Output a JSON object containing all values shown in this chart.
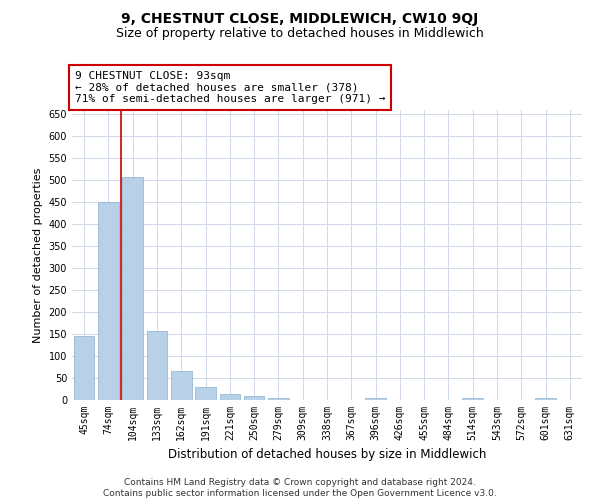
{
  "title": "9, CHESTNUT CLOSE, MIDDLEWICH, CW10 9QJ",
  "subtitle": "Size of property relative to detached houses in Middlewich",
  "xlabel": "Distribution of detached houses by size in Middlewich",
  "ylabel": "Number of detached properties",
  "categories": [
    "45sqm",
    "74sqm",
    "104sqm",
    "133sqm",
    "162sqm",
    "191sqm",
    "221sqm",
    "250sqm",
    "279sqm",
    "309sqm",
    "338sqm",
    "367sqm",
    "396sqm",
    "426sqm",
    "455sqm",
    "484sqm",
    "514sqm",
    "543sqm",
    "572sqm",
    "601sqm",
    "631sqm"
  ],
  "values": [
    145,
    450,
    507,
    158,
    65,
    30,
    13,
    8,
    5,
    0,
    0,
    0,
    5,
    0,
    0,
    0,
    5,
    0,
    0,
    5,
    0
  ],
  "bar_color": "#b8d0e8",
  "bar_edge_color": "#8ab0d0",
  "grid_color": "#d0d8e8",
  "background_color": "#ffffff",
  "annotation_text": "9 CHESTNUT CLOSE: 93sqm\n← 28% of detached houses are smaller (378)\n71% of semi-detached houses are larger (971) →",
  "annotation_box_color": "#ffffff",
  "annotation_box_edge_color": "#cc0000",
  "vline_x": 1.5,
  "vline_color": "#cc0000",
  "ylim": [
    0,
    660
  ],
  "yticks": [
    0,
    50,
    100,
    150,
    200,
    250,
    300,
    350,
    400,
    450,
    500,
    550,
    600,
    650
  ],
  "footer": "Contains HM Land Registry data © Crown copyright and database right 2024.\nContains public sector information licensed under the Open Government Licence v3.0.",
  "title_fontsize": 10,
  "subtitle_fontsize": 9,
  "xlabel_fontsize": 8.5,
  "ylabel_fontsize": 8,
  "tick_fontsize": 7,
  "annotation_fontsize": 8,
  "footer_fontsize": 6.5
}
